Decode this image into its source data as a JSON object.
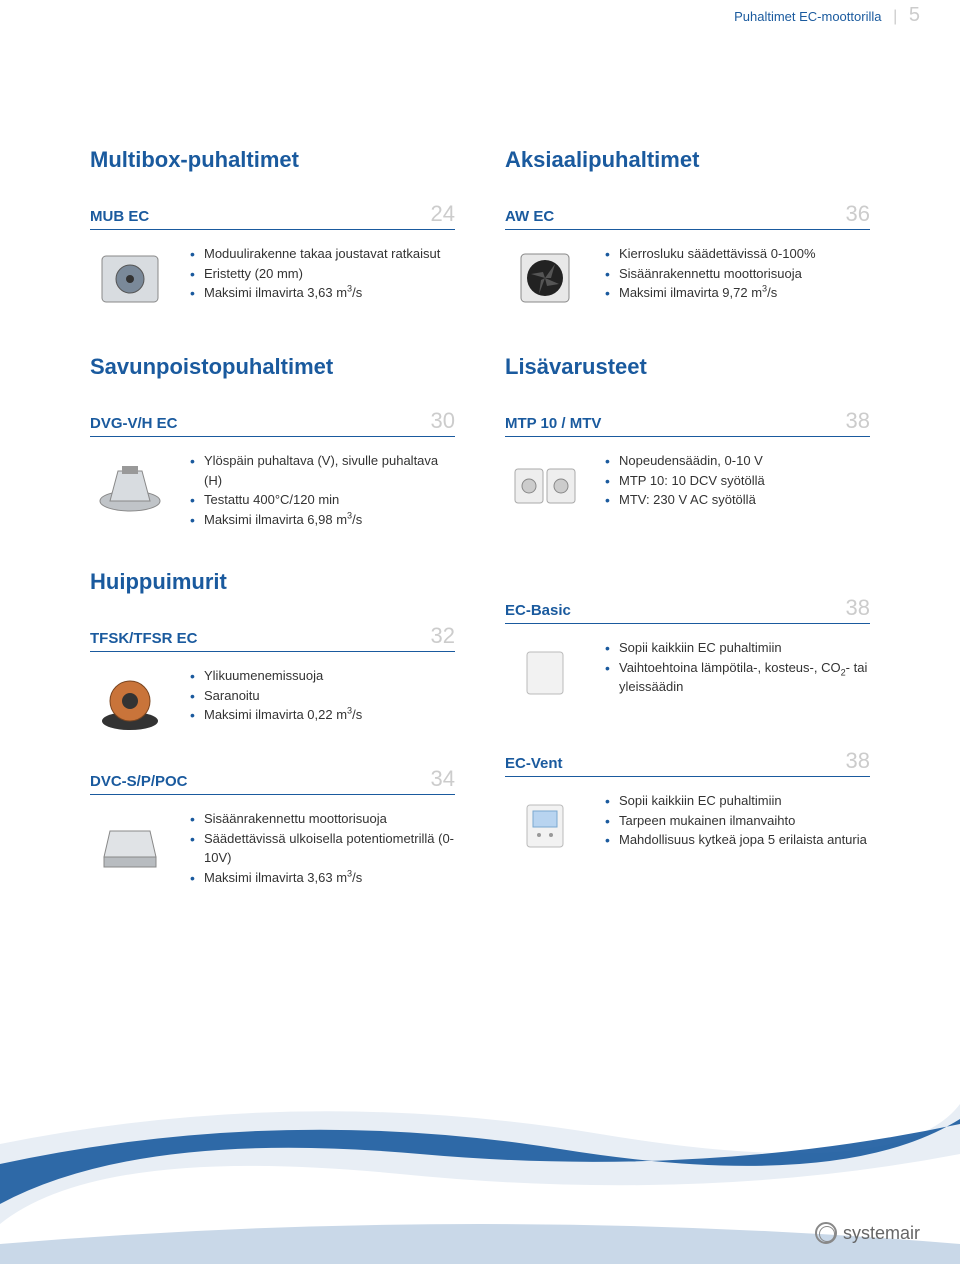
{
  "header": {
    "breadcrumb": "Puhaltimet EC-moottorilla",
    "page_number": "5"
  },
  "brand_blue": "#1a5a9e",
  "muted_gray": "#cccccc",
  "left_col": {
    "sections": [
      {
        "title": "Multibox-puhaltimet",
        "products": [
          {
            "name": "MUB EC",
            "page": "24",
            "image": "box-fan",
            "bullets": [
              "Moduulirakenne takaa joustavat ratkaisut",
              "Eristetty (20 mm)",
              "Maksimi ilmavirta 3,63 m³/s"
            ]
          }
        ]
      },
      {
        "title": "Savunpoistopuhaltimet",
        "products": [
          {
            "name": "DVG-V/H EC",
            "page": "30",
            "image": "roof-fan",
            "bullets": [
              "Ylöspäin puhaltava (V), sivulle puhaltava (H)",
              "Testattu 400°C/120 min",
              "Maksimi ilmavirta 6,98 m³/s"
            ]
          }
        ]
      },
      {
        "title": "Huippuimurit",
        "products": [
          {
            "name": "TFSK/TFSR EC",
            "page": "32",
            "image": "roof-fan-2",
            "bullets": [
              "Ylikuumenemissuoja",
              "Saranoitu",
              "Maksimi ilmavirta 0,22 m³/s"
            ]
          },
          {
            "name": "DVC-S/P/POC",
            "page": "34",
            "image": "box-roof",
            "bullets": [
              "Sisäänrakennettu moottorisuoja",
              "Säädettävissä ulkoisella potentiometrillä (0-10V)",
              "Maksimi ilmavirta 3,63 m³/s"
            ]
          }
        ]
      }
    ]
  },
  "right_col": {
    "sections": [
      {
        "title": "Aksiaalipuhaltimet",
        "products": [
          {
            "name": "AW EC",
            "page": "36",
            "image": "axial-fan",
            "bullets": [
              "Kierrosluku säädettävissä 0-100%",
              "Sisäänrakennettu moottorisuoja",
              "Maksimi ilmavirta 9,72 m³/s"
            ]
          }
        ]
      },
      {
        "title": "Lisävarusteet",
        "products": [
          {
            "name": "MTP 10 / MTV",
            "page": "38",
            "image": "dial-control",
            "bullets": [
              "Nopeudensäädin, 0-10 V",
              "MTP 10: 10 DCV syötöllä",
              "MTV: 230 V AC syötöllä"
            ]
          },
          {
            "name": "EC-Basic",
            "page": "38",
            "image": "panel",
            "bullets": [
              "Sopii kaikkiin EC puhaltimiin",
              "Vaihtoehtoina lämpötila-, kosteus-, CO₂- tai yleissäädin"
            ]
          },
          {
            "name": "EC-Vent",
            "page": "38",
            "image": "panel-screen",
            "bullets": [
              "Sopii kaikkiin EC puhaltimiin",
              "Tarpeen mukainen ilmanvaihto",
              "Mahdollisuus kytkeä jopa 5 erilaista anturia"
            ]
          }
        ]
      }
    ]
  },
  "footer": {
    "logo_text": "systemair",
    "wave_color_dark": "#1a5a9e",
    "wave_color_light": "#e8eef5"
  }
}
